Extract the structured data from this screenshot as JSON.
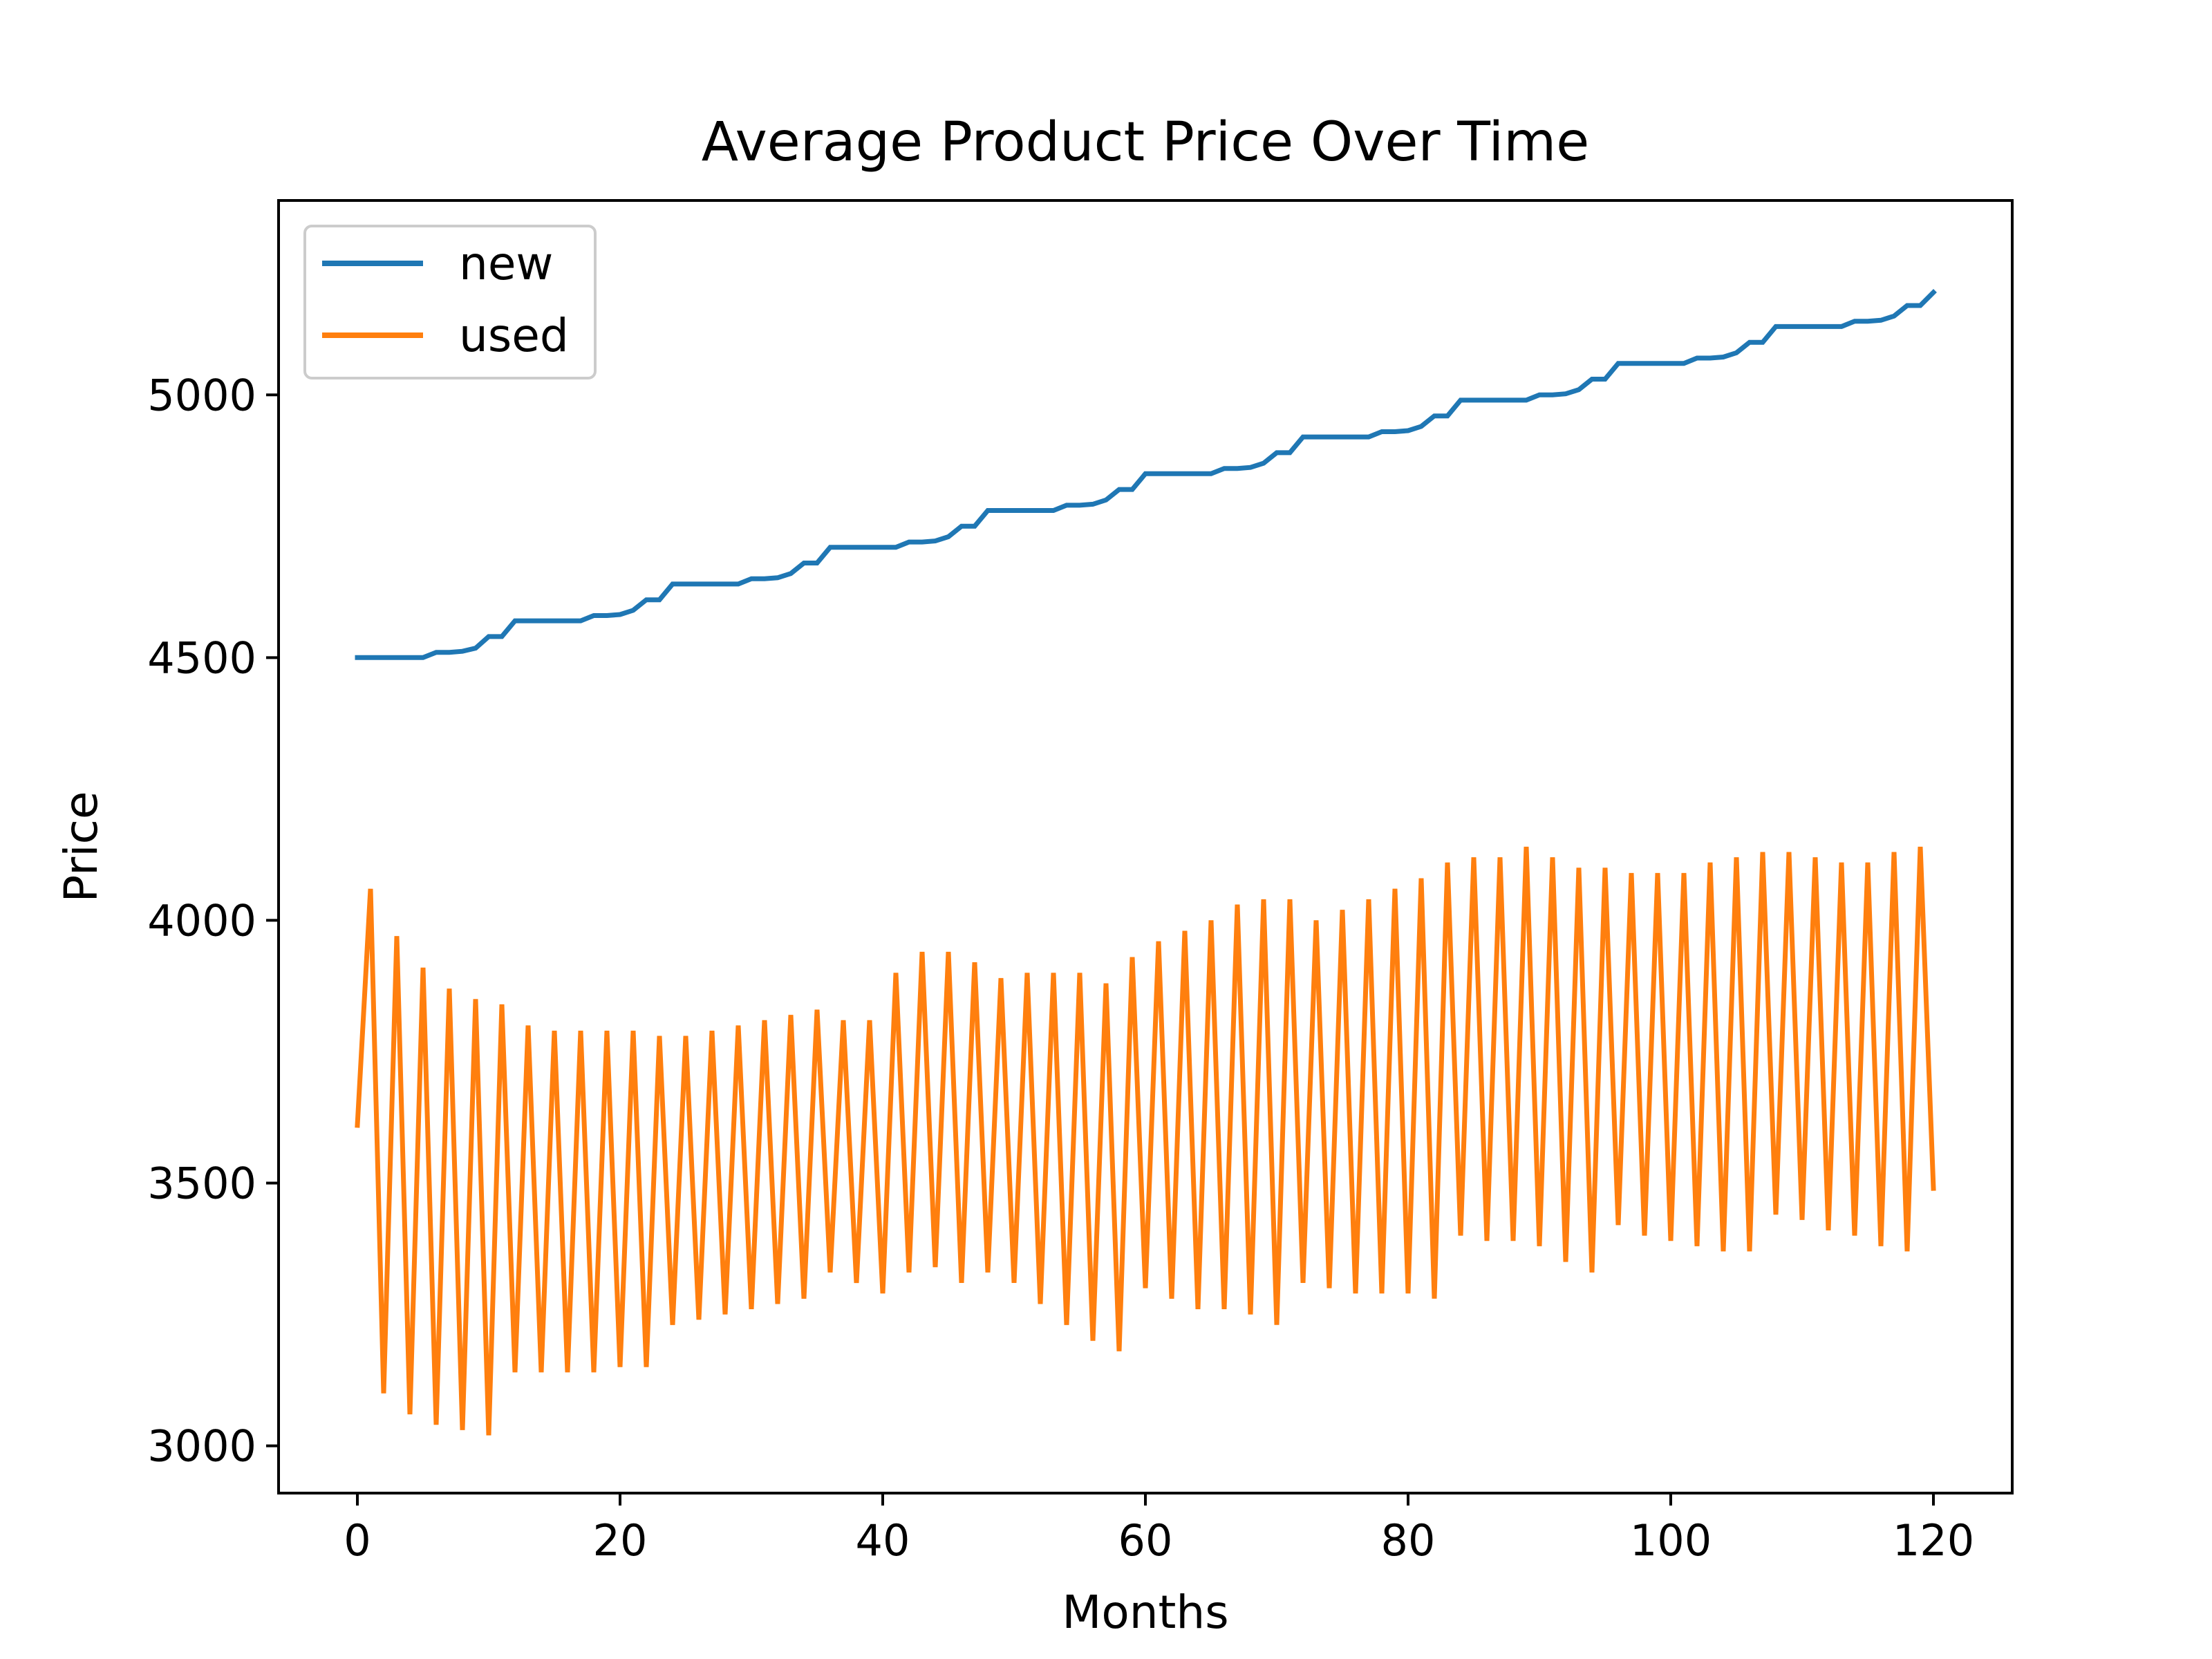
{
  "chart_data": {
    "type": "line",
    "title": "Average Product Price Over Time",
    "xlabel": "Months",
    "ylabel": "Price",
    "xlim": [
      -6,
      126
    ],
    "ylim": [
      2910,
      5370
    ],
    "xticks": [
      0,
      20,
      40,
      60,
      80,
      100,
      120
    ],
    "yticks": [
      3000,
      3500,
      4000,
      4500,
      5000
    ],
    "grid": false,
    "legend_position": "upper-left",
    "series": [
      {
        "name": "new",
        "color": "#1f77b4",
        "x": [
          0,
          1,
          2,
          3,
          4,
          5,
          6,
          7,
          8,
          9,
          10,
          11,
          12,
          13,
          14,
          15,
          16,
          17,
          18,
          19,
          20,
          21,
          22,
          23,
          24,
          25,
          26,
          27,
          28,
          29,
          30,
          31,
          32,
          33,
          34,
          35,
          36,
          37,
          38,
          39,
          40,
          41,
          42,
          43,
          44,
          45,
          46,
          47,
          48,
          49,
          50,
          51,
          52,
          53,
          54,
          55,
          56,
          57,
          58,
          59,
          60,
          61,
          62,
          63,
          64,
          65,
          66,
          67,
          68,
          69,
          70,
          71,
          72,
          73,
          74,
          75,
          76,
          77,
          78,
          79,
          80,
          81,
          82,
          83,
          84,
          85,
          86,
          87,
          88,
          89,
          90,
          91,
          92,
          93,
          94,
          95,
          96,
          97,
          98,
          99,
          100,
          101,
          102,
          103,
          104,
          105,
          106,
          107,
          108,
          109,
          110,
          111,
          112,
          113,
          114,
          115,
          116,
          117,
          118,
          119,
          120
        ],
        "values": [
          4500,
          4500,
          4500,
          4500,
          4500,
          4500,
          4510,
          4510,
          4512,
          4518,
          4540,
          4540,
          4570,
          4570,
          4570,
          4570,
          4570,
          4570,
          4580,
          4580,
          4582,
          4590,
          4610,
          4610,
          4640,
          4640,
          4640,
          4640,
          4640,
          4640,
          4650,
          4650,
          4652,
          4660,
          4680,
          4680,
          4710,
          4710,
          4710,
          4710,
          4710,
          4710,
          4720,
          4720,
          4722,
          4730,
          4750,
          4750,
          4780,
          4780,
          4780,
          4780,
          4780,
          4780,
          4790,
          4790,
          4792,
          4800,
          4820,
          4820,
          4850,
          4850,
          4850,
          4850,
          4850,
          4850,
          4860,
          4860,
          4862,
          4870,
          4890,
          4890,
          4920,
          4920,
          4920,
          4920,
          4920,
          4920,
          4930,
          4930,
          4932,
          4940,
          4960,
          4960,
          4990,
          4990,
          4990,
          4990,
          4990,
          4990,
          5000,
          5000,
          5002,
          5010,
          5030,
          5030,
          5060,
          5060,
          5060,
          5060,
          5060,
          5060,
          5070,
          5070,
          5072,
          5080,
          5100,
          5100,
          5130,
          5130,
          5130,
          5130,
          5130,
          5130,
          5140,
          5140,
          5142,
          5150,
          5170,
          5170,
          5195
        ]
      },
      {
        "name": "used",
        "color": "#ff7f0e",
        "x": [
          0,
          1,
          2,
          3,
          4,
          5,
          6,
          7,
          8,
          9,
          10,
          11,
          12,
          13,
          14,
          15,
          16,
          17,
          18,
          19,
          20,
          21,
          22,
          23,
          24,
          25,
          26,
          27,
          28,
          29,
          30,
          31,
          32,
          33,
          34,
          35,
          36,
          37,
          38,
          39,
          40,
          41,
          42,
          43,
          44,
          45,
          46,
          47,
          48,
          49,
          50,
          51,
          52,
          53,
          54,
          55,
          56,
          57,
          58,
          59,
          60,
          61,
          62,
          63,
          64,
          65,
          66,
          67,
          68,
          69,
          70,
          71,
          72,
          73,
          74,
          75,
          76,
          77,
          78,
          79,
          80,
          81,
          82,
          83,
          84,
          85,
          86,
          87,
          88,
          89,
          90,
          91,
          92,
          93,
          94,
          95,
          96,
          97,
          98,
          99,
          100,
          101,
          102,
          103,
          104,
          105,
          106,
          107,
          108,
          109,
          110,
          111,
          112,
          113,
          114,
          115,
          116,
          117,
          118,
          119,
          120
        ],
        "values": [
          3610,
          4060,
          3100,
          3970,
          3060,
          3910,
          3040,
          3870,
          3030,
          3850,
          3020,
          3840,
          3140,
          3800,
          3140,
          3790,
          3140,
          3790,
          3140,
          3790,
          3150,
          3790,
          3150,
          3780,
          3230,
          3780,
          3240,
          3790,
          3250,
          3800,
          3260,
          3810,
          3270,
          3820,
          3280,
          3830,
          3330,
          3810,
          3310,
          3810,
          3290,
          3900,
          3330,
          3940,
          3340,
          3940,
          3310,
          3920,
          3330,
          3890,
          3310,
          3900,
          3270,
          3900,
          3230,
          3900,
          3200,
          3880,
          3180,
          3930,
          3300,
          3960,
          3280,
          3980,
          3260,
          4000,
          3260,
          4030,
          3250,
          4040,
          3230,
          4040,
          3310,
          4000,
          3300,
          4020,
          3290,
          4040,
          3290,
          4060,
          3290,
          4080,
          3280,
          4110,
          3400,
          4120,
          3390,
          4120,
          3390,
          4140,
          3380,
          4120,
          3350,
          4100,
          3330,
          4100,
          3420,
          4090,
          3400,
          4090,
          3390,
          4090,
          3380,
          4110,
          3370,
          4120,
          3370,
          4130,
          3440,
          4130,
          3430,
          4120,
          3410,
          4110,
          3400,
          4110,
          3380,
          4130,
          3370,
          4140,
          3490
        ]
      }
    ]
  }
}
